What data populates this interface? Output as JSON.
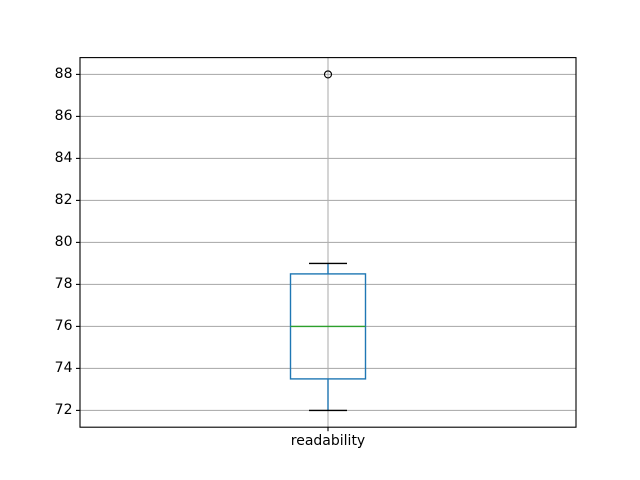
{
  "figure": {
    "background": "#ffffff"
  },
  "chart_data": {
    "type": "boxplot",
    "title": "",
    "xlabel": "",
    "ylabel": "",
    "categories": [
      "readability"
    ],
    "series": [
      {
        "name": "readability",
        "whisker_low": 72,
        "q1": 73.5,
        "median": 76,
        "q3": 78.5,
        "whisker_high": 79,
        "outliers": [
          88
        ]
      }
    ],
    "ylim": [
      71.2,
      88.8
    ],
    "yticks": [
      72,
      74,
      76,
      78,
      80,
      82,
      84,
      86,
      88
    ],
    "grid": true,
    "legend": "none",
    "colors": {
      "box": "#1f77b4",
      "whisker": "#1f77b4",
      "median": "#2ca02c",
      "cap": "#000000",
      "flier_edge": "#000000",
      "grid": "#b0b0b0",
      "spine": "#000000",
      "tick_text": "#000000"
    }
  }
}
